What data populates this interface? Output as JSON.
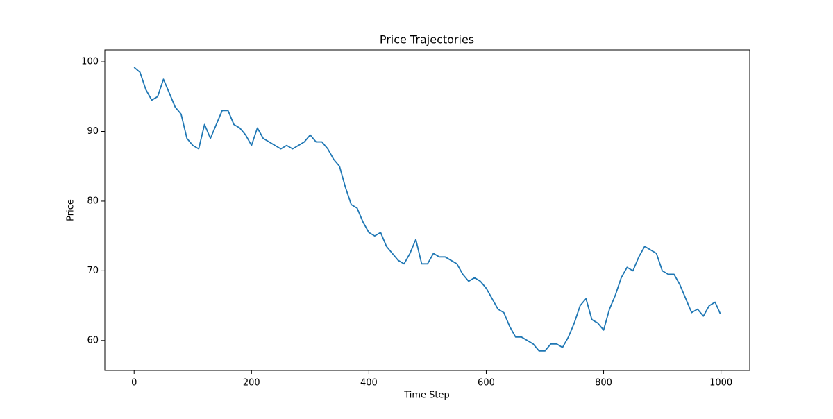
{
  "chart_data": {
    "type": "line",
    "title": "Price Trajectories",
    "x_label": "Time Step",
    "y_label": "Price",
    "x": [
      0,
      10,
      20,
      30,
      40,
      50,
      60,
      70,
      80,
      90,
      100,
      110,
      120,
      130,
      140,
      150,
      160,
      170,
      180,
      190,
      200,
      210,
      220,
      230,
      240,
      250,
      260,
      270,
      280,
      290,
      300,
      310,
      320,
      330,
      340,
      350,
      360,
      370,
      380,
      390,
      400,
      410,
      420,
      430,
      440,
      450,
      460,
      470,
      480,
      490,
      500,
      510,
      520,
      530,
      540,
      550,
      560,
      570,
      580,
      590,
      600,
      610,
      620,
      630,
      640,
      650,
      660,
      670,
      680,
      690,
      700,
      710,
      720,
      730,
      740,
      750,
      760,
      770,
      780,
      790,
      800,
      810,
      820,
      830,
      840,
      850,
      860,
      870,
      880,
      890,
      900,
      910,
      920,
      930,
      940,
      950,
      960,
      970,
      980,
      990,
      999
    ],
    "series": [
      {
        "name": "Price",
        "color": "#1f77b4",
        "values": [
          99.2,
          98.5,
          96,
          94.5,
          95,
          97.5,
          95.5,
          93.5,
          92.5,
          89,
          88,
          87.5,
          91,
          89,
          91,
          93,
          93,
          91,
          90.5,
          89.5,
          88,
          90.5,
          89,
          88.5,
          88,
          87.5,
          88,
          87.5,
          88,
          88.5,
          89.5,
          88.5,
          88.5,
          87.5,
          86,
          85,
          82,
          79.5,
          79,
          77,
          75.5,
          75,
          75.5,
          73.5,
          72.5,
          71.5,
          71,
          72.5,
          74.5,
          71,
          71,
          72.5,
          72,
          72,
          71.5,
          71,
          69.5,
          68.5,
          69,
          68.5,
          67.5,
          66,
          64.5,
          64,
          62,
          60.5,
          60.5,
          60,
          59.5,
          58.5,
          58.5,
          59.5,
          59.5,
          59,
          60.5,
          62.5,
          65,
          66,
          63,
          62.5,
          61.5,
          64.5,
          66.5,
          69,
          70.5,
          70,
          72,
          73.5,
          73,
          72.5,
          70,
          69.5,
          69.5,
          68,
          66,
          64,
          64.5,
          63.5,
          65,
          65.5,
          63.8
        ]
      }
    ],
    "xlim": [
      -49.95,
      1048.95
    ],
    "ylim": [
      55.7,
      101.7
    ],
    "xticks": [
      0,
      200,
      400,
      600,
      800,
      1000
    ],
    "yticks": [
      60,
      70,
      80,
      90,
      100
    ]
  }
}
